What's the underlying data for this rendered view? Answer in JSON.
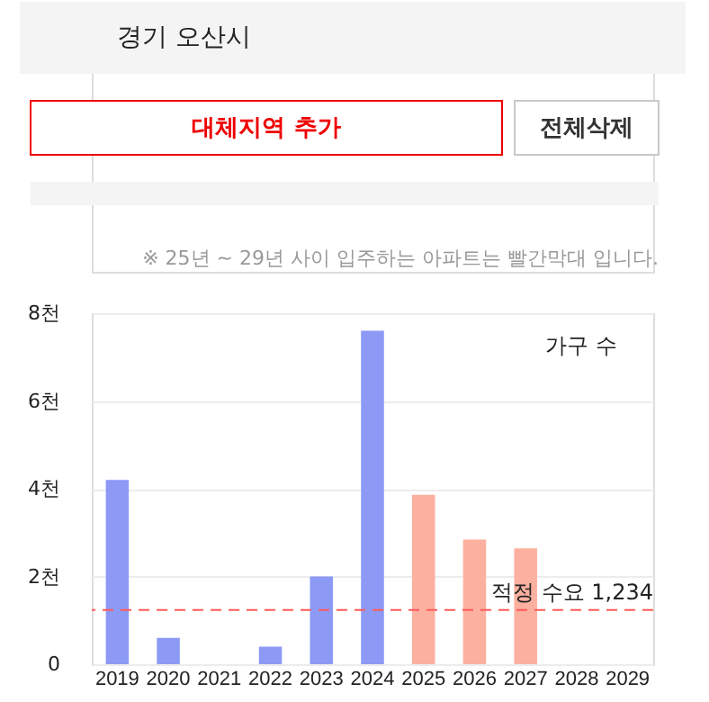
{
  "chart_data": {
    "type": "bar",
    "categories": [
      "2019",
      "2020",
      "2021",
      "2022",
      "2023",
      "2024",
      "2025",
      "2026",
      "2027",
      "2028",
      "2029"
    ],
    "values": [
      4.2,
      0.6,
      0,
      0.4,
      2.0,
      7.6,
      3.86,
      2.84,
      2.64,
      0,
      0
    ],
    "colors": [
      "#8c9af5",
      "#8c9af5",
      "#8c9af5",
      "#8c9af5",
      "#8c9af5",
      "#8c9af5",
      "#fcb0a0",
      "#fcb0a0",
      "#fcb0a0",
      "#fcb0a0",
      "#fcb0a0"
    ],
    "ylim": [
      0,
      8
    ],
    "yticks": [
      0,
      {
        "value": 2,
        "label": "2천"
      },
      {
        "value": 4,
        "label": "4천"
      },
      {
        "value": 6,
        "label": "6천"
      },
      {
        "value": 8,
        "label": "8천"
      }
    ],
    "grid": "y",
    "ref_lines": [
      {
        "axis": "y",
        "value": 1.234,
        "label": "적정 수요 1,234",
        "color": "#ff5a5a",
        "line_style": "dashed"
      }
    ],
    "annotations": [
      "경기 오산시",
      "대체지역 추가",
      "전체삭제",
      "※ 25년 ~ 29년 사이 입주하는 아파트는 빨간막대 입니다.",
      "가구 수"
    ]
  }
}
